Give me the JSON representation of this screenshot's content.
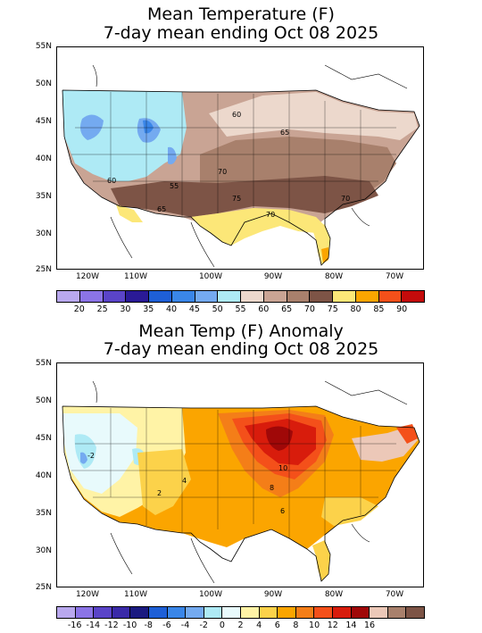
{
  "panel1": {
    "title_line1": "Mean Temperature (F)",
    "title_line2": "7-day mean ending Oct 08 2025",
    "lat_labels": [
      "55N",
      "50N",
      "45N",
      "40N",
      "35N",
      "30N",
      "25N"
    ],
    "lon_labels": [
      "120W",
      "110W",
      "100W",
      "90W",
      "80W",
      "70W"
    ],
    "contour_labels": [
      "60",
      "65",
      "70",
      "75",
      "70",
      "60",
      "55",
      "65",
      "70"
    ],
    "colorbar_labels": [
      "20",
      "25",
      "30",
      "35",
      "40",
      "45",
      "50",
      "55",
      "60",
      "65",
      "70",
      "75",
      "80",
      "85",
      "90"
    ],
    "colorbar_colors": [
      "#b9a8ee",
      "#8b74e6",
      "#5a44c8",
      "#2a1a96",
      "#1e5fd6",
      "#3a86e8",
      "#74aaf0",
      "#aeeaf5",
      "#ecd8cc",
      "#c9a494",
      "#a8806c",
      "#7d5446",
      "#fce778",
      "#fba500",
      "#f4501a",
      "#c40b0b"
    ]
  },
  "panel2": {
    "title_line1": "Mean Temp (F) Anomaly",
    "title_line2": "7-day mean ending Oct 08 2025",
    "lat_labels": [
      "55N",
      "50N",
      "45N",
      "40N",
      "35N",
      "30N",
      "25N"
    ],
    "lon_labels": [
      "120W",
      "110W",
      "100W",
      "90W",
      "80W",
      "70W"
    ],
    "contour_labels": [
      "-2",
      "4",
      "2",
      "10",
      "8",
      "6"
    ],
    "colorbar_labels": [
      "-16",
      "-14",
      "-12",
      "-10",
      "-8",
      "-6",
      "-4",
      "-2",
      "0",
      "2",
      "4",
      "6",
      "8",
      "10",
      "12",
      "14",
      "16"
    ],
    "colorbar_colors": [
      "#b9a8ee",
      "#8b74e6",
      "#5a44c8",
      "#3a2aa8",
      "#1a1a80",
      "#1e5fd6",
      "#3a86e8",
      "#74aaf0",
      "#aeeaf5",
      "#e8fafc",
      "#fff3a6",
      "#fcd24a",
      "#fba500",
      "#f47e18",
      "#f4501a",
      "#d81c0c",
      "#a00808",
      "#ecc8b8",
      "#a8806c",
      "#7d5446"
    ]
  }
}
